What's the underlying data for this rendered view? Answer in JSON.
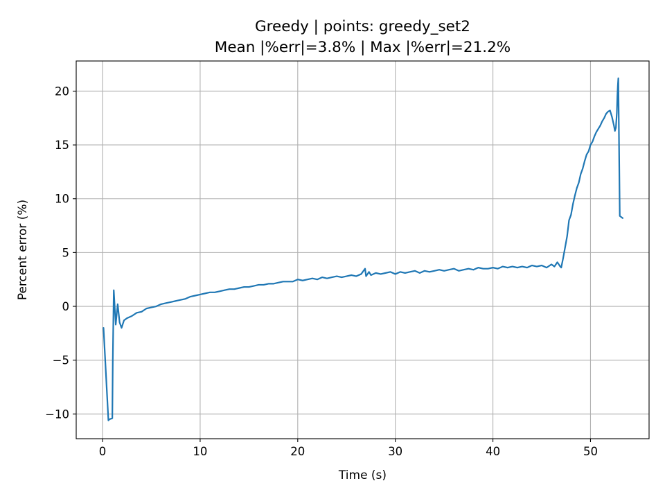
{
  "chart_data": {
    "type": "line",
    "title": "Greedy | points: greedy_set2",
    "subtitle": "Mean |%err|=3.8% | Max |%err|=21.2%",
    "xlabel": "Time (s)",
    "ylabel": "Percent error (%)",
    "xlim": [
      -2.7,
      56.0
    ],
    "ylim": [
      -12.3,
      22.8
    ],
    "xticks": [
      0,
      10,
      20,
      30,
      40,
      50
    ],
    "yticks": [
      -10,
      -5,
      0,
      5,
      10,
      15,
      20
    ],
    "xtick_labels": [
      "0",
      "10",
      "20",
      "30",
      "40",
      "50"
    ],
    "ytick_labels": [
      "−10",
      "−5",
      "0",
      "5",
      "10",
      "15",
      "20"
    ],
    "grid": true,
    "series": [
      {
        "color": "#1f77b4",
        "x": [
          0.1,
          0.6,
          0.7,
          1.0,
          1.05,
          1.15,
          1.35,
          1.55,
          1.75,
          1.95,
          2.2,
          2.5,
          3.0,
          3.5,
          4.0,
          4.5,
          5.0,
          5.5,
          6.0,
          6.5,
          7.0,
          7.5,
          8.0,
          8.5,
          9.0,
          9.5,
          10.0,
          10.5,
          11.0,
          11.5,
          12.0,
          12.5,
          13.0,
          13.5,
          14.0,
          14.5,
          15.0,
          15.5,
          16.0,
          16.5,
          17.0,
          17.5,
          18.0,
          18.5,
          19.0,
          19.5,
          20.0,
          20.5,
          21.0,
          21.5,
          22.0,
          22.5,
          23.0,
          23.5,
          24.0,
          24.5,
          25.0,
          25.5,
          26.0,
          26.5,
          26.9,
          27.0,
          27.3,
          27.5,
          28.0,
          28.5,
          29.0,
          29.5,
          30.0,
          30.5,
          31.0,
          31.5,
          32.0,
          32.5,
          33.0,
          33.5,
          34.0,
          34.5,
          35.0,
          35.5,
          36.0,
          36.5,
          37.0,
          37.5,
          38.0,
          38.5,
          39.0,
          39.5,
          40.0,
          40.5,
          41.0,
          41.5,
          42.0,
          42.5,
          43.0,
          43.5,
          44.0,
          44.5,
          45.0,
          45.5,
          46.0,
          46.3,
          46.6,
          46.9,
          47.0,
          47.2,
          47.4,
          47.6,
          47.8,
          48.0,
          48.2,
          48.4,
          48.6,
          48.8,
          49.0,
          49.2,
          49.4,
          49.6,
          49.8,
          50.0,
          50.2,
          50.4,
          50.6,
          50.8,
          51.0,
          51.2,
          51.4,
          51.6,
          51.8,
          52.0,
          52.2,
          52.4,
          52.5,
          52.6,
          52.7,
          52.75,
          52.8,
          52.85,
          52.9,
          53.0,
          53.3
        ],
        "y": [
          -2.0,
          -10.6,
          -10.5,
          -10.4,
          -5.0,
          1.5,
          -1.7,
          0.2,
          -1.5,
          -2.0,
          -1.3,
          -1.1,
          -0.9,
          -0.6,
          -0.5,
          -0.2,
          -0.1,
          0.0,
          0.2,
          0.3,
          0.4,
          0.5,
          0.6,
          0.7,
          0.9,
          1.0,
          1.1,
          1.2,
          1.3,
          1.3,
          1.4,
          1.5,
          1.6,
          1.6,
          1.7,
          1.8,
          1.8,
          1.9,
          2.0,
          2.0,
          2.1,
          2.1,
          2.2,
          2.3,
          2.3,
          2.3,
          2.5,
          2.4,
          2.5,
          2.6,
          2.5,
          2.7,
          2.6,
          2.7,
          2.8,
          2.7,
          2.8,
          2.9,
          2.8,
          3.0,
          3.5,
          2.8,
          3.2,
          2.9,
          3.1,
          3.0,
          3.1,
          3.2,
          3.0,
          3.2,
          3.1,
          3.2,
          3.3,
          3.1,
          3.3,
          3.2,
          3.3,
          3.4,
          3.3,
          3.4,
          3.5,
          3.3,
          3.4,
          3.5,
          3.4,
          3.6,
          3.5,
          3.5,
          3.6,
          3.5,
          3.7,
          3.6,
          3.7,
          3.6,
          3.7,
          3.6,
          3.8,
          3.7,
          3.8,
          3.6,
          3.9,
          3.7,
          4.1,
          3.7,
          3.6,
          4.5,
          5.5,
          6.5,
          8.0,
          8.5,
          9.5,
          10.3,
          11.0,
          11.5,
          12.3,
          12.8,
          13.5,
          14.1,
          14.4,
          15.0,
          15.3,
          15.8,
          16.2,
          16.5,
          16.8,
          17.2,
          17.5,
          17.9,
          18.1,
          18.2,
          17.6,
          16.8,
          16.3,
          16.6,
          18.0,
          19.5,
          20.5,
          21.2,
          17.0,
          8.4,
          8.2
        ]
      }
    ]
  }
}
